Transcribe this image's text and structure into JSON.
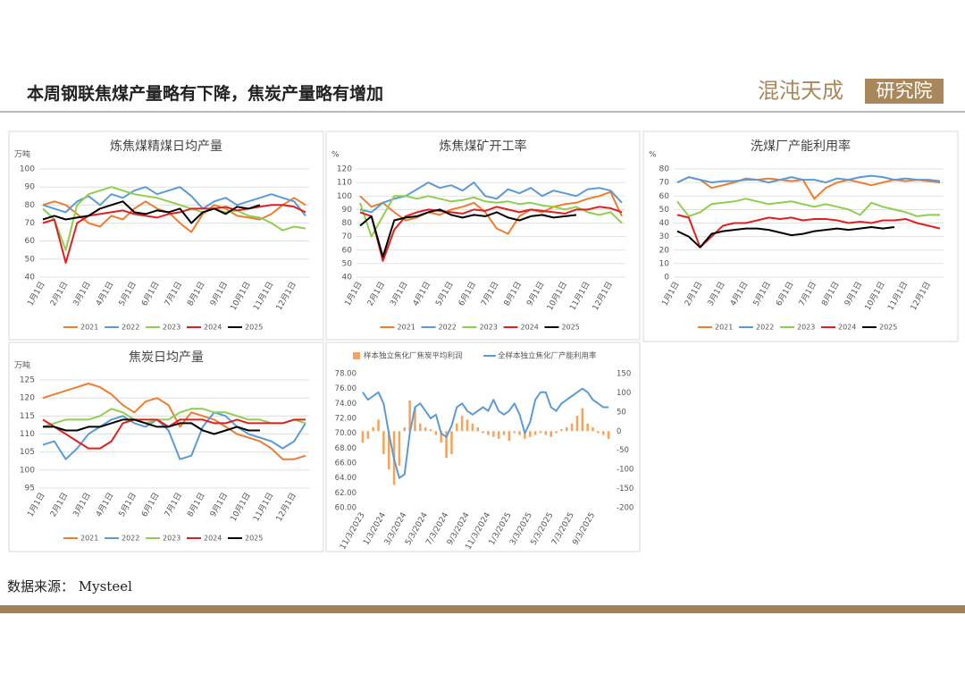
{
  "header": {
    "title": "本周钢联焦煤产量略有下降，焦炭产量略有增加"
  },
  "logo": {
    "name": "混沌天成",
    "unit": "研究院"
  },
  "source": "数据来源： Mysteel",
  "chart_data": [
    {
      "type": "line",
      "title": "炼焦煤精煤日均产量",
      "unit": "万吨",
      "grid": true,
      "categories": [
        "1月1日",
        null,
        "2月1日",
        null,
        "3月1日",
        null,
        "4月1日",
        null,
        "5月1日",
        null,
        "6月1日",
        null,
        "7月1日",
        null,
        "8月1日",
        null,
        "9月1日",
        null,
        "10月1日",
        null,
        "11月1日",
        null,
        "12月1日",
        null
      ],
      "ylim": [
        40,
        100
      ],
      "yticks": [
        40,
        50,
        60,
        70,
        80,
        90,
        100
      ],
      "series": [
        {
          "name": "2021",
          "color": "#ed7d31",
          "values": [
            80,
            82,
            80,
            75,
            70,
            68,
            74,
            72,
            78,
            82,
            78,
            76,
            70,
            65,
            75,
            80,
            78,
            74,
            73,
            72,
            75,
            80,
            84,
            80
          ]
        },
        {
          "name": "2022",
          "color": "#5b9bd5",
          "values": [
            80,
            78,
            76,
            82,
            85,
            80,
            86,
            84,
            88,
            90,
            86,
            88,
            90,
            85,
            78,
            82,
            84,
            80,
            82,
            84,
            86,
            84,
            82,
            74
          ]
        },
        {
          "name": "2023",
          "color": "#8fce4e",
          "values": [
            78,
            72,
            55,
            80,
            86,
            88,
            90,
            88,
            86,
            85,
            84,
            82,
            80,
            78,
            76,
            78,
            76,
            77,
            74,
            73,
            70,
            66,
            68,
            67
          ]
        },
        {
          "name": "2024",
          "color": "#e02020",
          "values": [
            70,
            72,
            48,
            70,
            74,
            75,
            76,
            77,
            75,
            74,
            73,
            75,
            76,
            78,
            78,
            78,
            79,
            77,
            78,
            79,
            80,
            80,
            79,
            76
          ]
        },
        {
          "name": "2025",
          "color": "#000000",
          "values": [
            72,
            74,
            72,
            73,
            74,
            78,
            80,
            82,
            76,
            75,
            77,
            76,
            78,
            70,
            76,
            78,
            75,
            79,
            78,
            80,
            null,
            null,
            null,
            null
          ]
        }
      ]
    },
    {
      "type": "line",
      "title": "炼焦煤矿开工率",
      "unit": "%",
      "grid": true,
      "categories": [
        "1月1日",
        null,
        "2月1日",
        null,
        "3月1日",
        null,
        "4月1日",
        null,
        "5月1日",
        null,
        "6月1日",
        null,
        "7月1日",
        null,
        "8月1日",
        null,
        "9月1日",
        null,
        "10月1日",
        null,
        "11月1日",
        null,
        "12月1日",
        null
      ],
      "ylim": [
        40,
        120
      ],
      "yticks": [
        40,
        50,
        60,
        70,
        80,
        90,
        100,
        110,
        120
      ],
      "series": [
        {
          "name": "2021",
          "color": "#ed7d31",
          "values": [
            100,
            92,
            95,
            88,
            82,
            84,
            88,
            86,
            90,
            92,
            95,
            88,
            76,
            72,
            85,
            90,
            88,
            92,
            94,
            95,
            98,
            100,
            103,
            85
          ]
        },
        {
          "name": "2022",
          "color": "#5b9bd5",
          "values": [
            90,
            88,
            95,
            98,
            100,
            105,
            110,
            106,
            108,
            104,
            110,
            100,
            98,
            105,
            102,
            106,
            100,
            104,
            102,
            100,
            105,
            106,
            104,
            95
          ]
        },
        {
          "name": "2023",
          "color": "#8fce4e",
          "values": [
            95,
            70,
            85,
            100,
            100,
            98,
            100,
            98,
            96,
            97,
            99,
            96,
            95,
            96,
            94,
            95,
            93,
            92,
            90,
            92,
            88,
            86,
            88,
            80
          ]
        },
        {
          "name": "2024",
          "color": "#e02020",
          "values": [
            88,
            85,
            52,
            75,
            85,
            88,
            90,
            89,
            88,
            87,
            90,
            89,
            92,
            90,
            88,
            90,
            89,
            88,
            87,
            90,
            90,
            92,
            91,
            88
          ]
        },
        {
          "name": "2025",
          "color": "#000000",
          "values": [
            78,
            85,
            55,
            82,
            84,
            85,
            88,
            90,
            86,
            84,
            86,
            85,
            88,
            84,
            82,
            85,
            86,
            84,
            85,
            86,
            null,
            null,
            null,
            null
          ]
        }
      ]
    },
    {
      "type": "line",
      "title": "洗煤厂产能利用率",
      "unit": "%",
      "grid": true,
      "categories": [
        "1月1日",
        null,
        "2月1日",
        null,
        "3月1日",
        null,
        "4月1日",
        null,
        "5月1日",
        null,
        "6月1日",
        null,
        "7月1日",
        null,
        "8月1日",
        null,
        "9月1日",
        null,
        "10月1日",
        null,
        "11月1日",
        null,
        "12月1日",
        null
      ],
      "ylim": [
        0,
        80
      ],
      "yticks": [
        0,
        10,
        20,
        30,
        40,
        50,
        60,
        70,
        80
      ],
      "series": [
        {
          "name": "2021",
          "color": "#ed7d31",
          "values": [
            70,
            74,
            72,
            66,
            68,
            70,
            73,
            72,
            73,
            72,
            71,
            72,
            58,
            66,
            70,
            72,
            70,
            68,
            70,
            72,
            71,
            72,
            71,
            70
          ]
        },
        {
          "name": "2022",
          "color": "#5b9bd5",
          "values": [
            70,
            74,
            72,
            70,
            71,
            71,
            72,
            72,
            70,
            72,
            74,
            72,
            72,
            70,
            73,
            72,
            74,
            75,
            74,
            72,
            73,
            72,
            72,
            71
          ]
        },
        {
          "name": "2023",
          "color": "#8fce4e",
          "values": [
            56,
            45,
            48,
            54,
            55,
            56,
            58,
            56,
            54,
            55,
            56,
            54,
            52,
            54,
            52,
            50,
            46,
            55,
            52,
            50,
            48,
            45,
            46,
            46
          ]
        },
        {
          "name": "2024",
          "color": "#e02020",
          "values": [
            46,
            44,
            22,
            30,
            38,
            40,
            40,
            42,
            44,
            43,
            44,
            42,
            43,
            43,
            42,
            40,
            41,
            40,
            42,
            42,
            43,
            40,
            38,
            36
          ]
        },
        {
          "name": "2025",
          "color": "#000000",
          "values": [
            34,
            30,
            22,
            32,
            34,
            35,
            36,
            36,
            35,
            33,
            31,
            32,
            34,
            35,
            36,
            35,
            36,
            37,
            36,
            37,
            null,
            null,
            null,
            null
          ]
        }
      ]
    },
    {
      "type": "line",
      "title": "焦炭日均产量",
      "unit": "万吨",
      "grid": true,
      "categories": [
        "1月1日",
        null,
        "2月1日",
        null,
        "3月1日",
        null,
        "4月1日",
        null,
        "5月1日",
        null,
        "6月1日",
        null,
        "7月1日",
        null,
        "8月1日",
        null,
        "9月1日",
        null,
        "10月1日",
        null,
        "11月1日",
        null,
        "12月1日",
        null
      ],
      "ylim": [
        95,
        125
      ],
      "yticks": [
        95,
        100,
        105,
        110,
        115,
        120,
        125
      ],
      "series": [
        {
          "name": "2021",
          "color": "#ed7d31",
          "values": [
            120,
            121,
            122,
            123,
            124,
            123,
            121,
            118,
            116,
            119,
            120,
            118,
            112,
            116,
            115,
            114,
            112,
            110,
            109,
            108,
            106,
            103,
            103,
            104
          ]
        },
        {
          "name": "2022",
          "color": "#5b9bd5",
          "values": [
            107,
            108,
            103,
            106,
            110,
            112,
            114,
            115,
            113,
            112,
            114,
            111,
            103,
            104,
            112,
            116,
            115,
            112,
            110,
            109,
            108,
            106,
            108,
            113
          ]
        },
        {
          "name": "2023",
          "color": "#8fce4e",
          "values": [
            112,
            113,
            114,
            114,
            114,
            115,
            117,
            116,
            114,
            113,
            114,
            114,
            116,
            117,
            117,
            116,
            116,
            115,
            114,
            114,
            113,
            113,
            114,
            113
          ]
        },
        {
          "name": "2024",
          "color": "#e02020",
          "values": [
            114,
            112,
            110,
            108,
            106,
            106,
            108,
            113,
            114,
            114,
            114,
            112,
            114,
            114,
            114,
            113,
            113,
            114,
            113,
            113,
            113,
            113,
            114,
            114
          ]
        },
        {
          "name": "2025",
          "color": "#000000",
          "values": [
            112,
            112,
            111,
            111,
            112,
            112,
            113,
            114,
            114,
            113,
            112,
            112,
            113,
            113,
            111,
            110,
            111,
            112,
            111,
            111,
            null,
            null,
            null,
            null
          ]
        }
      ]
    },
    {
      "type": "combo",
      "grid": false,
      "categories": [
        "11/3/2023",
        null,
        null,
        null,
        "1/3/2024",
        null,
        null,
        null,
        "3/3/2024",
        null,
        null,
        null,
        "5/3/2024",
        null,
        null,
        null,
        "7/3/2024",
        null,
        null,
        null,
        "9/3/2024",
        null,
        null,
        null,
        "11/3/2024",
        null,
        null,
        null,
        "1/3/2025",
        null,
        null,
        null,
        "3/3/2025",
        null,
        null,
        null,
        "5/3/2025",
        null,
        null,
        null,
        "7/3/2025",
        null,
        null,
        null,
        "9/3/2025",
        null,
        null,
        null
      ],
      "ylim": [
        60,
        78
      ],
      "yticks": [
        {
          "value": 60,
          "label": "60.00"
        },
        {
          "value": 62,
          "label": "62.00"
        },
        {
          "value": 64,
          "label": "64.00"
        },
        {
          "value": 66,
          "label": "66.00"
        },
        {
          "value": 68,
          "label": "68.00"
        },
        {
          "value": 70,
          "label": "70.00"
        },
        {
          "value": 72,
          "label": "72.00"
        },
        {
          "value": 74,
          "label": "74.00"
        },
        {
          "value": 76,
          "label": "76.00"
        },
        {
          "value": 78,
          "label": "78.00"
        }
      ],
      "y2lim": [
        -200,
        150
      ],
      "y2ticks": [
        -200,
        -150,
        -100,
        -50,
        0,
        50,
        100,
        150
      ],
      "series": [
        {
          "name": "样本独立焦化厂焦炭平均利润",
          "type": "bar",
          "axis": "y2",
          "color": "#f4a460",
          "values": [
            -30,
            -20,
            10,
            30,
            -60,
            -100,
            -140,
            -90,
            10,
            80,
            60,
            20,
            10,
            5,
            -10,
            -30,
            -70,
            -60,
            20,
            40,
            30,
            20,
            10,
            -5,
            -10,
            -15,
            -20,
            -10,
            -25,
            -5,
            -10,
            -20,
            -15,
            -10,
            -5,
            -10,
            -15,
            -5,
            5,
            10,
            20,
            40,
            60,
            20,
            10,
            -5,
            -10,
            -20
          ]
        },
        {
          "name": "全样本独立焦化厂产能利用率",
          "type": "line",
          "axis": "y",
          "color": "#5b9bd5",
          "values": [
            75.5,
            74.5,
            75,
            75.5,
            74,
            70,
            66.5,
            64,
            64.5,
            70,
            73.5,
            74,
            73,
            72,
            72.5,
            70,
            69.5,
            71,
            73.5,
            74,
            73,
            72.5,
            73,
            73.5,
            73,
            74.5,
            73,
            72.5,
            73,
            74,
            72.5,
            70,
            71.5,
            74.5,
            75.5,
            75.5,
            73.5,
            73,
            74,
            74.5,
            75,
            75.5,
            76,
            75.5,
            74.5,
            74,
            73.5,
            73.5
          ]
        }
      ]
    }
  ]
}
